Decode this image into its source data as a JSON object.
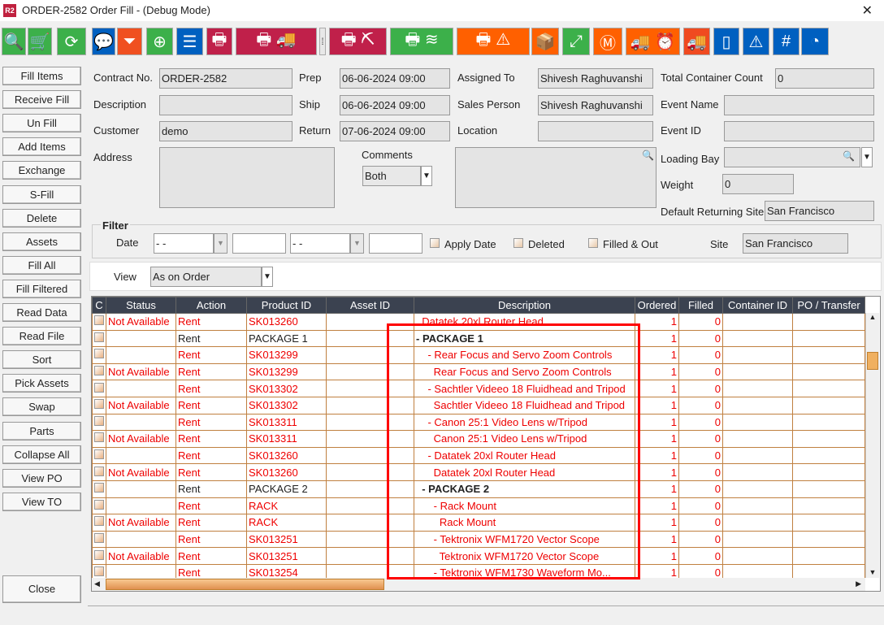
{
  "window": {
    "title": "ORDER-2582 Order Fill - (Debug Mode)",
    "app_icon": "R2",
    "close": "✕"
  },
  "toolbar": [
    {
      "icon": "search-icon",
      "glyph": "🔍",
      "color": "#3cb04a"
    },
    {
      "icon": "trolley-icon",
      "glyph": "🛒",
      "color": "#3cb04a"
    },
    {
      "icon": "refresh-icon",
      "glyph": "⟳",
      "color": "#3cb04a"
    },
    {
      "icon": "comment-icon",
      "glyph": "💬",
      "color": "#0060c0"
    },
    {
      "icon": "filter-icon",
      "glyph": "⏷",
      "color": "#f05020"
    },
    {
      "icon": "zoom-in-icon",
      "glyph": "⊕",
      "color": "#3cb04a"
    },
    {
      "icon": "list-icon",
      "glyph": "☰",
      "color": "#0060c0"
    },
    {
      "icon": "printer-icon",
      "glyph": "🖶",
      "color": "#c0204a"
    },
    {
      "icon": "print-truck-icon",
      "glyph": "🖶 🚚",
      "color": "#c0204a"
    },
    {
      "icon": "more-icon",
      "glyph": "⁞",
      "color": "#e8e8e8"
    },
    {
      "icon": "print-bucket-icon",
      "glyph": "🖶 ⛏",
      "color": "#c0204a"
    },
    {
      "icon": "print-stack-icon",
      "glyph": "🖶 ≋",
      "color": "#3cb04a"
    },
    {
      "icon": "print-warning-icon",
      "glyph": "🖶 ⚠",
      "color": "#ff6000"
    },
    {
      "icon": "box-icon",
      "glyph": "📦",
      "color": "#ff6000"
    },
    {
      "icon": "expand-icon",
      "glyph": "⤢",
      "color": "#3cb04a"
    },
    {
      "icon": "box-m-icon",
      "glyph": "Ⓜ",
      "color": "#ff6000"
    },
    {
      "icon": "truck-clock-icon",
      "glyph": "🚚 ⏰",
      "color": "#ff6000"
    },
    {
      "icon": "truck-icon",
      "glyph": "🚚",
      "color": "#f04a20"
    },
    {
      "icon": "book-icon",
      "glyph": "▯",
      "color": "#0060c0"
    },
    {
      "icon": "warning-eye-icon",
      "glyph": "⚠",
      "color": "#0060c0"
    },
    {
      "icon": "hash-icon",
      "glyph": "#",
      "color": "#0060c0"
    },
    {
      "icon": "gauge-icon",
      "glyph": "◔",
      "color": "#0060c0"
    }
  ],
  "sidebar": [
    "Fill Items",
    "Receive Fill",
    "Un Fill",
    "Add Items",
    "Exchange",
    "S-Fill",
    "Delete",
    "Assets",
    "Fill  All",
    "Fill Filtered",
    "Read Data",
    "Read File",
    "Sort",
    "Pick Assets",
    "Swap",
    "Parts",
    "Collapse All",
    "View PO",
    "View TO"
  ],
  "close_button": "Close",
  "form": {
    "contract_no_label": "Contract No.",
    "contract_no": "ORDER-2582",
    "description_label": "Description",
    "description": "",
    "customer_label": "Customer",
    "customer": "demo",
    "address_label": "Address",
    "address": "",
    "prep_label": "Prep",
    "prep": "06-06-2024 09:00",
    "ship_label": "Ship",
    "ship": "06-06-2024 09:00",
    "return_label": "Return",
    "return": "07-06-2024 09:00",
    "comments_label": "Comments",
    "comments_select": "Both",
    "assigned_to_label": "Assigned To",
    "assigned_to": "Shivesh Raghuvanshi",
    "sales_person_label": "Sales Person",
    "sales_person": "Shivesh Raghuvanshi",
    "location_label": "Location",
    "location": "",
    "total_container_label": "Total Container Count",
    "total_container": "0",
    "event_name_label": "Event Name",
    "event_name": "",
    "event_id_label": "Event ID",
    "event_id": "",
    "loading_bay_label": "Loading Bay",
    "loading_bay": "",
    "weight_label": "Weight",
    "weight": "0",
    "default_site_label": "Default Returning Site",
    "default_site": "San Francisco"
  },
  "filter": {
    "title": "Filter",
    "date_label": "Date",
    "date_from": "-  -",
    "date_to": "-  -",
    "apply_date": "Apply Date",
    "deleted": "Deleted",
    "filled_out": "Filled & Out",
    "site_label": "Site",
    "site": "San Francisco"
  },
  "view": {
    "label": "View",
    "value": "As on Order"
  },
  "grid": {
    "columns": [
      "C",
      "Status",
      "Action",
      "Product ID",
      "Asset ID",
      "Description",
      "Ordered",
      "Filled",
      "Container ID",
      "PO / Transfer"
    ],
    "rows": [
      [
        "",
        "Not Available",
        "Rent",
        "SK013260",
        "",
        "  Datatek 20xl Router Head",
        "1",
        "0",
        "",
        ""
      ],
      [
        "",
        "",
        "Rent",
        "PACKAGE 1",
        "",
        "- PACKAGE 1",
        "1",
        "0",
        "",
        ""
      ],
      [
        "",
        "",
        "Rent",
        "SK013299",
        "",
        "    - Rear Focus and Servo Zoom Controls",
        "1",
        "0",
        "",
        ""
      ],
      [
        "",
        "Not Available",
        "Rent",
        "SK013299",
        "",
        "      Rear Focus and Servo Zoom Controls",
        "1",
        "0",
        "",
        ""
      ],
      [
        "",
        "",
        "Rent",
        "SK013302",
        "",
        "    - Sachtler Videeo 18 Fluidhead and Tripod",
        "1",
        "0",
        "",
        ""
      ],
      [
        "",
        "Not Available",
        "Rent",
        "SK013302",
        "",
        "      Sachtler Videeo 18 Fluidhead and Tripod",
        "1",
        "0",
        "",
        ""
      ],
      [
        "",
        "",
        "Rent",
        "SK013311",
        "",
        "    - Canon 25:1 Video Lens w/Tripod",
        "1",
        "0",
        "",
        ""
      ],
      [
        "",
        "Not Available",
        "Rent",
        "SK013311",
        "",
        "      Canon 25:1 Video Lens w/Tripod",
        "1",
        "0",
        "",
        ""
      ],
      [
        "",
        "",
        "Rent",
        "SK013260",
        "",
        "    - Datatek 20xl Router Head",
        "1",
        "0",
        "",
        ""
      ],
      [
        "",
        "Not Available",
        "Rent",
        "SK013260",
        "",
        "      Datatek 20xl Router Head",
        "1",
        "0",
        "",
        ""
      ],
      [
        "",
        "",
        "Rent",
        "PACKAGE 2",
        "",
        "  - PACKAGE 2",
        "1",
        "0",
        "",
        ""
      ],
      [
        "",
        "",
        "Rent",
        "RACK",
        "",
        "      - Rack Mount",
        "1",
        "0",
        "",
        ""
      ],
      [
        "",
        "Not Available",
        "Rent",
        "RACK",
        "",
        "        Rack Mount",
        "1",
        "0",
        "",
        ""
      ],
      [
        "",
        "",
        "Rent",
        "SK013251",
        "",
        "      - Tektronix WFM1720 Vector Scope",
        "1",
        "0",
        "",
        ""
      ],
      [
        "",
        "Not Available",
        "Rent",
        "SK013251",
        "",
        "        Tektronix WFM1720 Vector Scope",
        "1",
        "0",
        "",
        ""
      ],
      [
        "",
        "",
        "Rent",
        "SK013254",
        "",
        "      - Tektronix WFM1730 Waveform Mo...",
        "1",
        "0",
        "",
        ""
      ]
    ]
  }
}
